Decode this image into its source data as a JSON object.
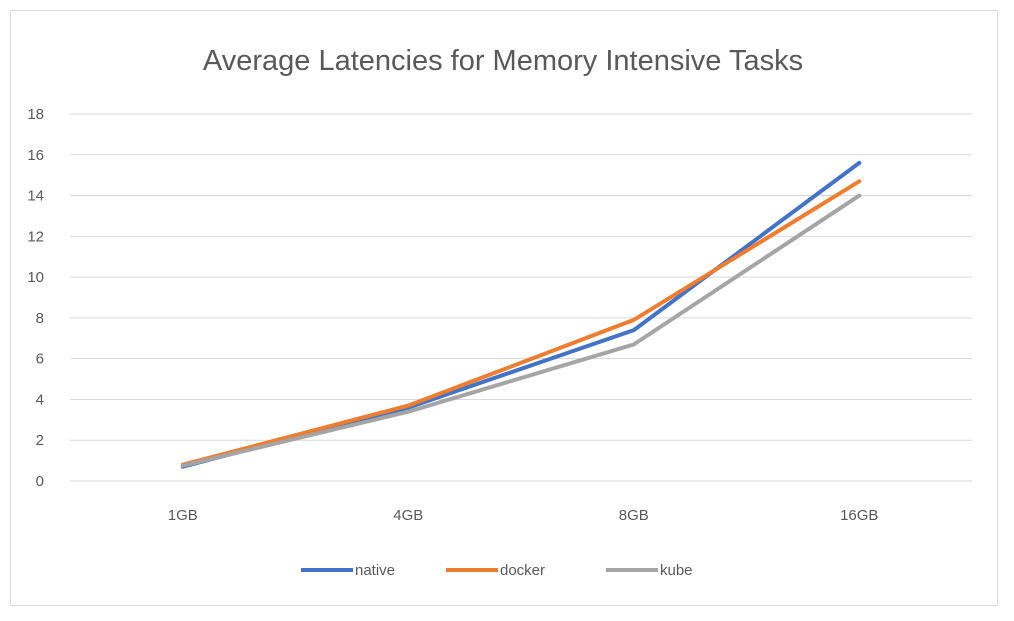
{
  "chart_data": {
    "type": "line",
    "title": "Average Latencies for Memory Intensive Tasks",
    "categories": [
      "1GB",
      "4GB",
      "8GB",
      "16GB"
    ],
    "ylim": [
      0,
      18
    ],
    "yticks": [
      0,
      2,
      4,
      6,
      8,
      10,
      12,
      14,
      16,
      18
    ],
    "grid": true,
    "legend": "bottom",
    "series": [
      {
        "name": "native",
        "color": "#4472c4",
        "values": [
          0.7,
          3.6,
          7.4,
          15.6
        ]
      },
      {
        "name": "docker",
        "color": "#ed7d31",
        "values": [
          0.8,
          3.7,
          7.9,
          14.7
        ]
      },
      {
        "name": "kube",
        "color": "#a5a5a5",
        "values": [
          0.75,
          3.4,
          6.7,
          14.0
        ]
      }
    ]
  }
}
